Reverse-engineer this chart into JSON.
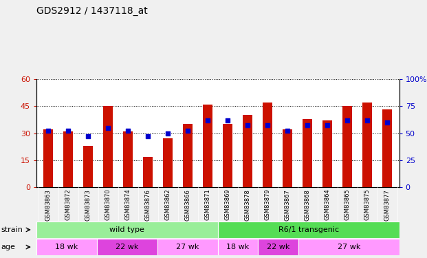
{
  "title": "GDS2912 / 1437118_at",
  "samples": [
    "GSM83863",
    "GSM83872",
    "GSM83873",
    "GSM83870",
    "GSM83874",
    "GSM83876",
    "GSM83862",
    "GSM83866",
    "GSM83871",
    "GSM83869",
    "GSM83878",
    "GSM83879",
    "GSM83867",
    "GSM83868",
    "GSM83864",
    "GSM83865",
    "GSM83875",
    "GSM83877"
  ],
  "counts": [
    32,
    31,
    23,
    45,
    31,
    17,
    27,
    35,
    46,
    35,
    40,
    47,
    32,
    38,
    37,
    45,
    47,
    43
  ],
  "percentiles": [
    52,
    52,
    47,
    55,
    52,
    47,
    50,
    52,
    62,
    62,
    57,
    57,
    52,
    57,
    57,
    62,
    62,
    60
  ],
  "bar_color": "#CC1100",
  "dot_color": "#0000CC",
  "ylim_left": [
    0,
    60
  ],
  "ylim_right": [
    0,
    100
  ],
  "yticks_left": [
    0,
    15,
    30,
    45,
    60
  ],
  "yticks_right": [
    0,
    25,
    50,
    75,
    100
  ],
  "strain_wt_color": "#99EE99",
  "strain_r61_color": "#55DD55",
  "age_light_color": "#FF99FF",
  "age_dark_color": "#DD44DD",
  "bar_width": 0.5,
  "fig_bg": "#F0F0F0",
  "plot_bg": "#FFFFFF",
  "xlabel_bg": "#CCCCCC"
}
